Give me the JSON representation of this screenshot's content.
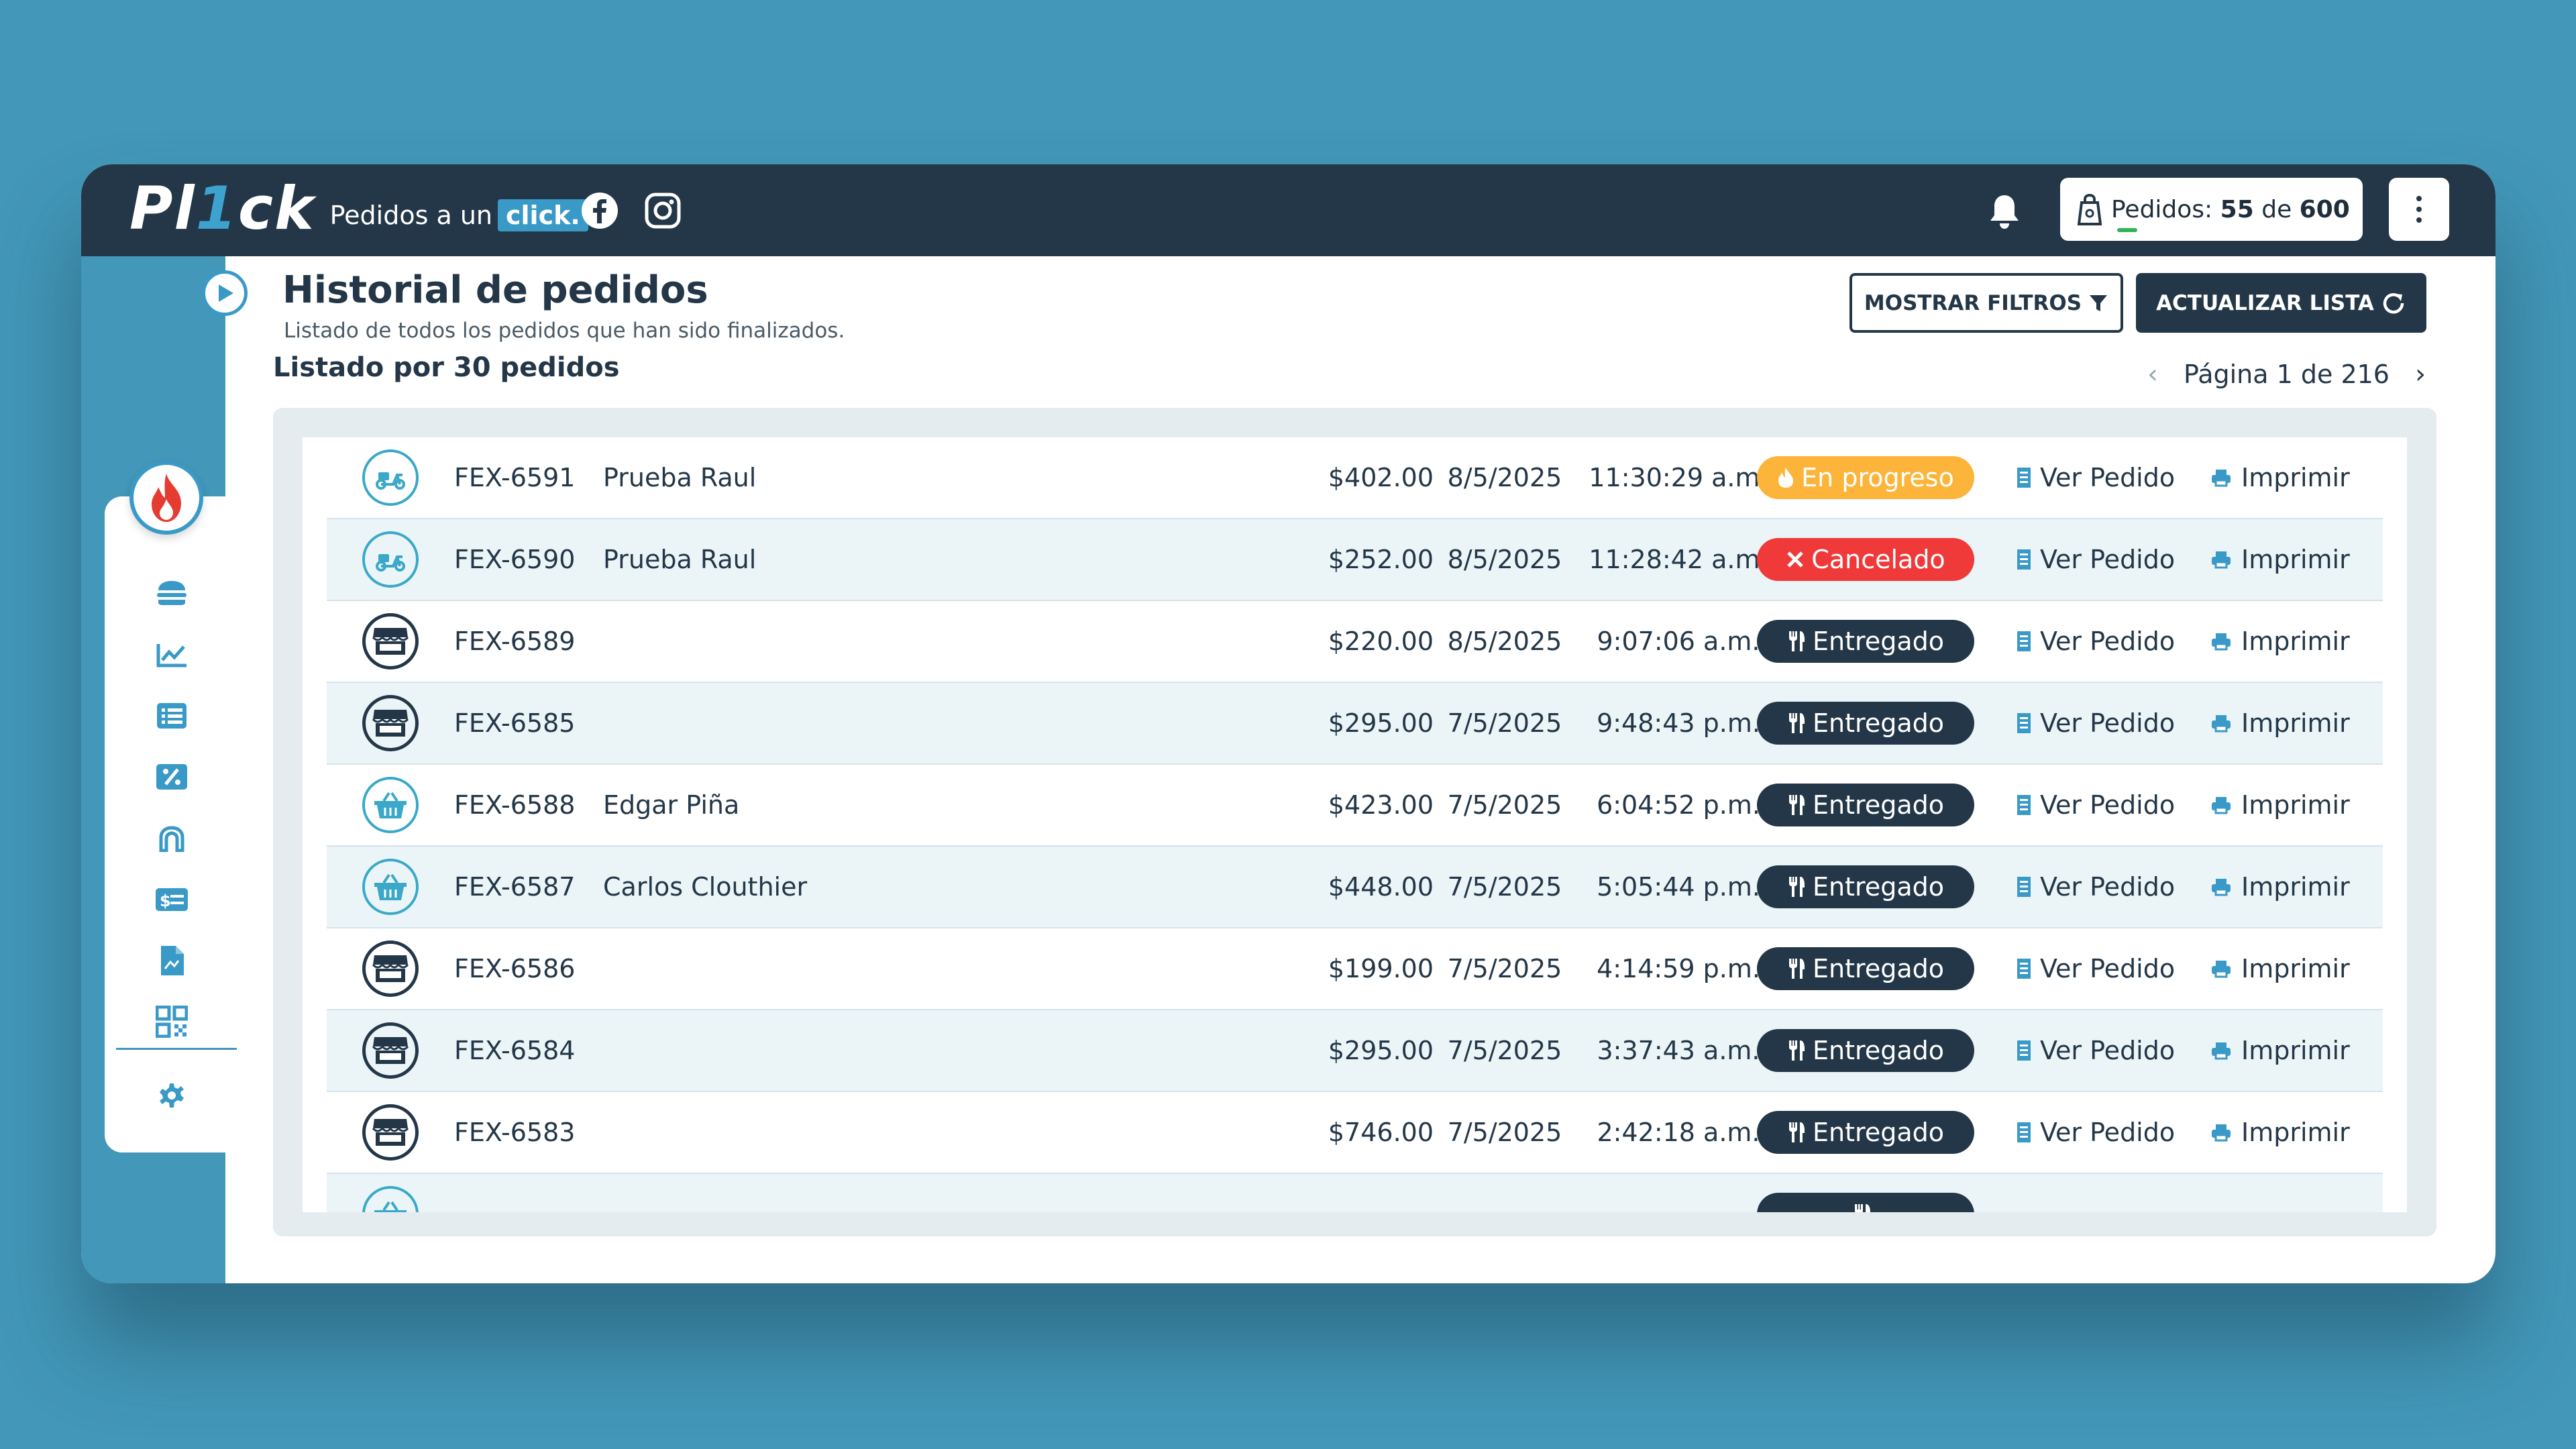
{
  "brand": {
    "logo_text_a": "Pl",
    "logo_text_b": "1",
    "logo_text_c": "ck",
    "tagline": "Pedidos a un",
    "tagline_chip": "click."
  },
  "header": {
    "orders_label": "Pedidos:",
    "orders_count": "55",
    "orders_de": "de",
    "orders_total": "600"
  },
  "page": {
    "title": "Historial de pedidos",
    "subtitle": "Listado de todos los pedidos que han sido finalizados.",
    "list_count": "Listado por 30 pedidos",
    "filters_button": "MOSTRAR FILTROS",
    "refresh_button": "ACTUALIZAR LISTA",
    "pagination": "Página 1 de 216"
  },
  "colors": {
    "dark": "#243748",
    "teal": "#4397b8",
    "in_progress": "#fcb43a",
    "cancelled": "#f03a3a",
    "delivered": "#243748"
  },
  "actions": {
    "view": "Ver Pedido",
    "print": "Imprimir"
  },
  "orders": [
    {
      "icon": "delivery-icon",
      "id": "FEX-6591",
      "name": "Prueba Raul",
      "amount": "$402.00",
      "date": "8/5/2025",
      "time": "11:30:29 a.m.",
      "status": "En progreso",
      "status_type": "in_progress"
    },
    {
      "icon": "delivery-icon",
      "id": "FEX-6590",
      "name": "Prueba Raul",
      "amount": "$252.00",
      "date": "8/5/2025",
      "time": "11:28:42 a.m.",
      "status": "Cancelado",
      "status_type": "cancelled"
    },
    {
      "icon": "store-icon",
      "id": "FEX-6589",
      "name": "",
      "amount": "$220.00",
      "date": "8/5/2025",
      "time": "9:07:06 a.m.",
      "status": "Entregado",
      "status_type": "delivered"
    },
    {
      "icon": "store-icon",
      "id": "FEX-6585",
      "name": "",
      "amount": "$295.00",
      "date": "7/5/2025",
      "time": "9:48:43 p.m.",
      "status": "Entregado",
      "status_type": "delivered"
    },
    {
      "icon": "basket-icon",
      "id": "FEX-6588",
      "name": "Edgar Piña",
      "amount": "$423.00",
      "date": "7/5/2025",
      "time": "6:04:52 p.m.",
      "status": "Entregado",
      "status_type": "delivered"
    },
    {
      "icon": "basket-icon",
      "id": "FEX-6587",
      "name": "Carlos Clouthier",
      "amount": "$448.00",
      "date": "7/5/2025",
      "time": "5:05:44 p.m.",
      "status": "Entregado",
      "status_type": "delivered"
    },
    {
      "icon": "store-icon",
      "id": "FEX-6586",
      "name": "",
      "amount": "$199.00",
      "date": "7/5/2025",
      "time": "4:14:59 p.m.",
      "status": "Entregado",
      "status_type": "delivered"
    },
    {
      "icon": "store-icon",
      "id": "FEX-6584",
      "name": "",
      "amount": "$295.00",
      "date": "7/5/2025",
      "time": "3:37:43 a.m.",
      "status": "Entregado",
      "status_type": "delivered"
    },
    {
      "icon": "store-icon",
      "id": "FEX-6583",
      "name": "",
      "amount": "$746.00",
      "date": "7/5/2025",
      "time": "2:42:18 a.m.",
      "status": "Entregado",
      "status_type": "delivered"
    },
    {
      "icon": "basket-icon",
      "id": "",
      "name": "",
      "amount": "",
      "date": "",
      "time": "",
      "status": "",
      "status_type": "delivered"
    }
  ],
  "sidebar": {
    "items": [
      {
        "icon": "burger-icon"
      },
      {
        "icon": "chart-line-icon"
      },
      {
        "icon": "list-icon"
      },
      {
        "icon": "percent-icon"
      },
      {
        "icon": "arch-icon"
      },
      {
        "icon": "money-card-icon"
      },
      {
        "icon": "document-icon"
      },
      {
        "icon": "qr-code-icon"
      },
      {
        "icon": "gear-icon"
      }
    ]
  }
}
